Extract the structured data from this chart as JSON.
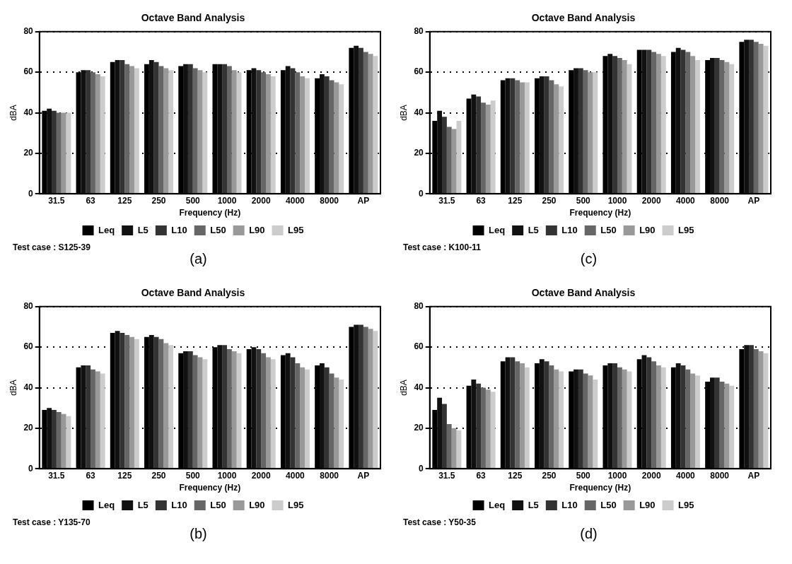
{
  "chart_data": [
    {
      "type": "bar",
      "title": "Octave Band Analysis",
      "xlabel": "Frequency (Hz)",
      "ylabel": "dBA",
      "categories": [
        "31.5",
        "63",
        "125",
        "250",
        "500",
        "1000",
        "2000",
        "4000",
        "8000",
        "AP"
      ],
      "ylim": [
        0,
        80
      ],
      "yticks": [
        0,
        20,
        40,
        60,
        80
      ],
      "grid": "y",
      "legend": "bottom",
      "annotations": [
        "Test case : S125-39",
        "(a)"
      ],
      "series": [
        {
          "name": "Leq",
          "color": "#000000",
          "values": [
            41,
            60,
            65,
            64,
            63,
            64,
            61,
            61,
            57,
            72
          ]
        },
        {
          "name": "L5",
          "color": "#111111",
          "values": [
            42,
            61,
            66,
            66,
            64,
            64,
            62,
            63,
            59,
            73
          ]
        },
        {
          "name": "L10",
          "color": "#333333",
          "values": [
            41,
            61,
            66,
            65,
            64,
            64,
            61,
            62,
            58,
            72
          ]
        },
        {
          "name": "L50",
          "color": "#666666",
          "values": [
            40,
            60,
            64,
            63,
            62,
            63,
            60,
            60,
            56,
            70
          ]
        },
        {
          "name": "L90",
          "color": "#999999",
          "values": [
            40,
            59,
            63,
            62,
            61,
            61,
            59,
            58,
            55,
            69
          ]
        },
        {
          "name": "L95",
          "color": "#cccccc",
          "values": [
            40,
            58,
            62,
            61,
            60,
            60,
            58,
            57,
            54,
            68
          ]
        }
      ]
    },
    {
      "type": "bar",
      "title": "Octave Band Analysis",
      "xlabel": "Frequency (Hz)",
      "ylabel": "dBA",
      "categories": [
        "31.5",
        "63",
        "125",
        "250",
        "500",
        "1000",
        "2000",
        "4000",
        "8000",
        "AP"
      ],
      "ylim": [
        0,
        80
      ],
      "yticks": [
        0,
        20,
        40,
        60,
        80
      ],
      "grid": "y",
      "legend": "bottom",
      "annotations": [
        "Test case : K100-11",
        "(c)"
      ],
      "series": [
        {
          "name": "Leq",
          "color": "#000000",
          "values": [
            36,
            47,
            56,
            57,
            61,
            68,
            71,
            70,
            66,
            75
          ]
        },
        {
          "name": "L5",
          "color": "#111111",
          "values": [
            41,
            49,
            57,
            58,
            62,
            69,
            71,
            72,
            67,
            76
          ]
        },
        {
          "name": "L10",
          "color": "#333333",
          "values": [
            38,
            48,
            57,
            58,
            62,
            68,
            71,
            71,
            67,
            76
          ]
        },
        {
          "name": "L50",
          "color": "#666666",
          "values": [
            33,
            45,
            56,
            56,
            61,
            67,
            70,
            70,
            66,
            75
          ]
        },
        {
          "name": "L90",
          "color": "#999999",
          "values": [
            32,
            44,
            55,
            54,
            60,
            66,
            69,
            68,
            65,
            74
          ]
        },
        {
          "name": "L95",
          "color": "#cccccc",
          "values": [
            36,
            46,
            55,
            53,
            60,
            64,
            68,
            66,
            64,
            73
          ]
        }
      ]
    },
    {
      "type": "bar",
      "title": "Octave Band Analysis",
      "xlabel": "Frequency (Hz)",
      "ylabel": "dBA",
      "categories": [
        "31.5",
        "63",
        "125",
        "250",
        "500",
        "1000",
        "2000",
        "4000",
        "8000",
        "AP"
      ],
      "ylim": [
        0,
        80
      ],
      "yticks": [
        0,
        20,
        40,
        60,
        80
      ],
      "grid": "y",
      "legend": "bottom",
      "annotations": [
        "Test case : Y135-70",
        "(b)"
      ],
      "series": [
        {
          "name": "Leq",
          "color": "#000000",
          "values": [
            29,
            50,
            67,
            65,
            57,
            60,
            59,
            56,
            51,
            70
          ]
        },
        {
          "name": "L5",
          "color": "#111111",
          "values": [
            30,
            51,
            68,
            66,
            58,
            61,
            60,
            57,
            52,
            71
          ]
        },
        {
          "name": "L10",
          "color": "#333333",
          "values": [
            29,
            51,
            67,
            65,
            58,
            61,
            59,
            55,
            50,
            71
          ]
        },
        {
          "name": "L50",
          "color": "#666666",
          "values": [
            28,
            49,
            66,
            64,
            56,
            59,
            57,
            52,
            47,
            70
          ]
        },
        {
          "name": "L90",
          "color": "#999999",
          "values": [
            27,
            48,
            65,
            62,
            55,
            58,
            55,
            50,
            45,
            69
          ]
        },
        {
          "name": "L95",
          "color": "#cccccc",
          "values": [
            26,
            47,
            64,
            61,
            54,
            57,
            54,
            49,
            44,
            68
          ]
        }
      ]
    },
    {
      "type": "bar",
      "title": "Octave Band Analysis",
      "xlabel": "Frequency (Hz)",
      "ylabel": "dBA",
      "categories": [
        "31.5",
        "63",
        "125",
        "250",
        "500",
        "1000",
        "2000",
        "4000",
        "8000",
        "AP"
      ],
      "ylim": [
        0,
        80
      ],
      "yticks": [
        0,
        20,
        40,
        60,
        80
      ],
      "grid": "y",
      "legend": "bottom",
      "annotations": [
        "Test case : Y50-35",
        "(d)"
      ],
      "series": [
        {
          "name": "Leq",
          "color": "#000000",
          "values": [
            29,
            41,
            53,
            52,
            48,
            51,
            54,
            50,
            43,
            59
          ]
        },
        {
          "name": "L5",
          "color": "#111111",
          "values": [
            35,
            44,
            55,
            54,
            49,
            52,
            56,
            52,
            45,
            61
          ]
        },
        {
          "name": "L10",
          "color": "#333333",
          "values": [
            32,
            42,
            55,
            53,
            49,
            52,
            55,
            51,
            45,
            61
          ]
        },
        {
          "name": "L50",
          "color": "#666666",
          "values": [
            22,
            40,
            53,
            51,
            47,
            50,
            53,
            49,
            43,
            59
          ]
        },
        {
          "name": "L90",
          "color": "#999999",
          "values": [
            20,
            39,
            52,
            49,
            46,
            49,
            51,
            47,
            42,
            58
          ]
        },
        {
          "name": "L95",
          "color": "#cccccc",
          "values": [
            19,
            38,
            50,
            48,
            44,
            48,
            50,
            46,
            41,
            57
          ]
        }
      ]
    }
  ]
}
